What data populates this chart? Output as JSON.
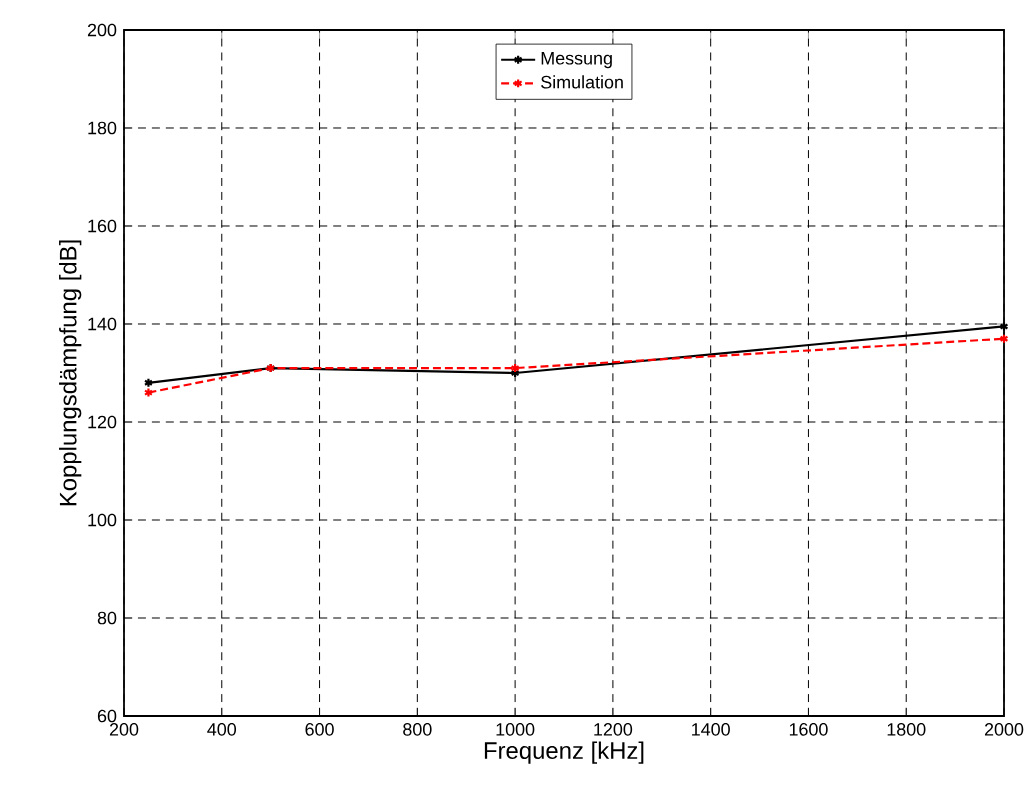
{
  "chart_data": {
    "type": "line",
    "xlabel": "Frequenz [kHz]",
    "ylabel": "Kopplungsdämpfung [dB]",
    "x": [
      250,
      500,
      1000,
      2000
    ],
    "series": [
      {
        "name": "Messung",
        "color": "#000000",
        "values": [
          128,
          131,
          130,
          139.5
        ],
        "line_style": "solid"
      },
      {
        "name": "Simulation",
        "color": "#ff0000",
        "values": [
          126,
          131,
          131,
          137
        ],
        "line_style": "dashed"
      }
    ],
    "xlim": [
      200,
      2000
    ],
    "xticks": [
      200,
      400,
      600,
      800,
      1000,
      1200,
      1400,
      1600,
      1800,
      2000
    ],
    "ylim": [
      60,
      200
    ],
    "yticks": [
      60,
      80,
      100,
      120,
      140,
      160,
      180,
      200
    ],
    "grid": true,
    "legend": "top",
    "marker": "cross"
  }
}
